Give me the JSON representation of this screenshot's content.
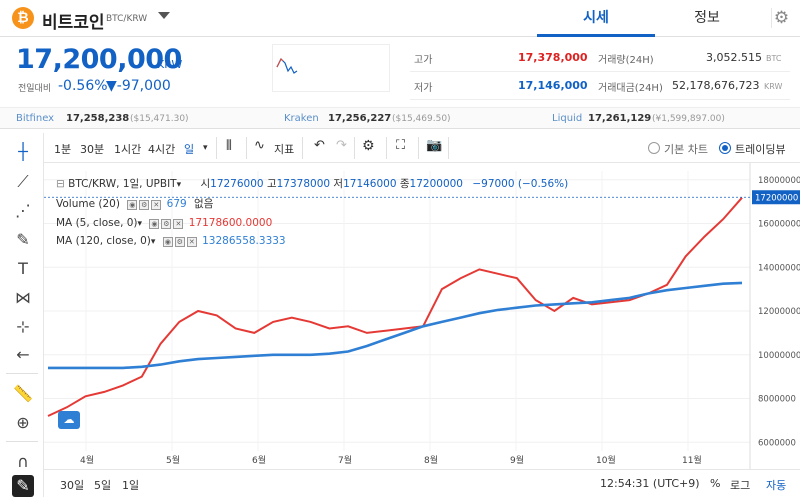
{
  "header": {
    "coin_symbol": "₿",
    "coin_name": "비트코인",
    "pair": "BTC/KRW",
    "tabs": [
      "시세",
      "정보"
    ],
    "settings_icon": "gear-icon"
  },
  "ticker": {
    "price": "17,200,000",
    "unit": "KRW",
    "change_label": "전일대비",
    "change_pct": "-0.56%",
    "change_abs": "▼-97,000"
  },
  "stats": {
    "high_label": "고가",
    "high": "17,378,000",
    "low_label": "저가",
    "low": "17,146,000",
    "volume_label": "거래량(24H)",
    "volume": "3,052.515",
    "volume_unit": "BTC",
    "amount_label": "거래대금(24H)",
    "amount": "52,178,676,723",
    "amount_unit": "KRW"
  },
  "exchanges": [
    {
      "name": "Bitfinex",
      "price": "17,258,238",
      "usd": "($15,471.30)"
    },
    {
      "name": "Kraken",
      "price": "17,256,227",
      "usd": "($15,469.50)"
    },
    {
      "name": "Liquid",
      "price": "17,261,129",
      "usd": "(¥1,599,897.00)"
    }
  ],
  "toolbar": {
    "intervals": [
      "1분",
      "30분",
      "1시간",
      "4시간",
      "일"
    ],
    "indicator_label": "지표",
    "basic_chart": "기본 차트",
    "trading_view": "트레이딩뷰"
  },
  "chart_legend": {
    "symbol": "BTC/KRW, 1일, UPBIT",
    "o_label": "시",
    "o": "17276000",
    "h_label": "고",
    "h": "17378000",
    "l_label": "저",
    "l": "17146000",
    "c_label": "종",
    "c": "17200000",
    "change": "−97000 (−0.56%)",
    "volume": "Volume (20)",
    "volume_val": "679",
    "volume_extra": "없음",
    "ma5": "MA (5, close, 0)",
    "ma5_val": "17178600.0000",
    "ma120": "MA (120, close, 0)",
    "ma120_val": "13286558.3333",
    "last_price_tag": "17200000"
  },
  "colors": {
    "up": "#d24f45",
    "down": "#1261c4",
    "ma5": "#e53935",
    "ma120": "#2f7fd4",
    "brand": "#1261c4"
  },
  "chart_data": {
    "type": "line",
    "x_ticks": [
      "4월",
      "5월",
      "6월",
      "7월",
      "8월",
      "9월",
      "10월",
      "11월"
    ],
    "y_ticks": [
      "18000000",
      "16000000",
      "14000000",
      "12000000",
      "10000000",
      "8000000",
      "6000000"
    ],
    "ylim": [
      5600000,
      18400000
    ],
    "series": [
      {
        "name": "MA (5, close, 0)",
        "values": [
          7200000,
          7600000,
          8100000,
          8300000,
          8600000,
          9000000,
          10500000,
          11500000,
          12000000,
          11800000,
          11200000,
          11000000,
          11500000,
          11700000,
          11500000,
          11200000,
          11300000,
          11000000,
          11100000,
          11200000,
          11300000,
          13000000,
          13500000,
          13900000,
          13700000,
          13500000,
          12500000,
          12000000,
          12600000,
          12300000,
          12400000,
          12500000,
          12800000,
          13200000,
          14500000,
          15400000,
          16200000,
          17178600
        ]
      },
      {
        "name": "MA (120, close, 0)",
        "values": [
          9400000,
          9400000,
          9400000,
          9400000,
          9400000,
          9450000,
          9550000,
          9700000,
          9800000,
          9850000,
          9900000,
          9950000,
          10000000,
          10000000,
          10000000,
          10050000,
          10150000,
          10400000,
          10700000,
          11000000,
          11300000,
          11500000,
          11700000,
          11900000,
          12050000,
          12150000,
          12250000,
          12300000,
          12350000,
          12400000,
          12500000,
          12600000,
          12800000,
          12950000,
          13050000,
          13150000,
          13250000,
          13286558
        ]
      }
    ]
  },
  "bottom": {
    "ranges": [
      "30일",
      "5일",
      "1일"
    ],
    "time": "12:54:31 (UTC+9)",
    "pct": "%",
    "log": "로그",
    "auto": "자동"
  }
}
